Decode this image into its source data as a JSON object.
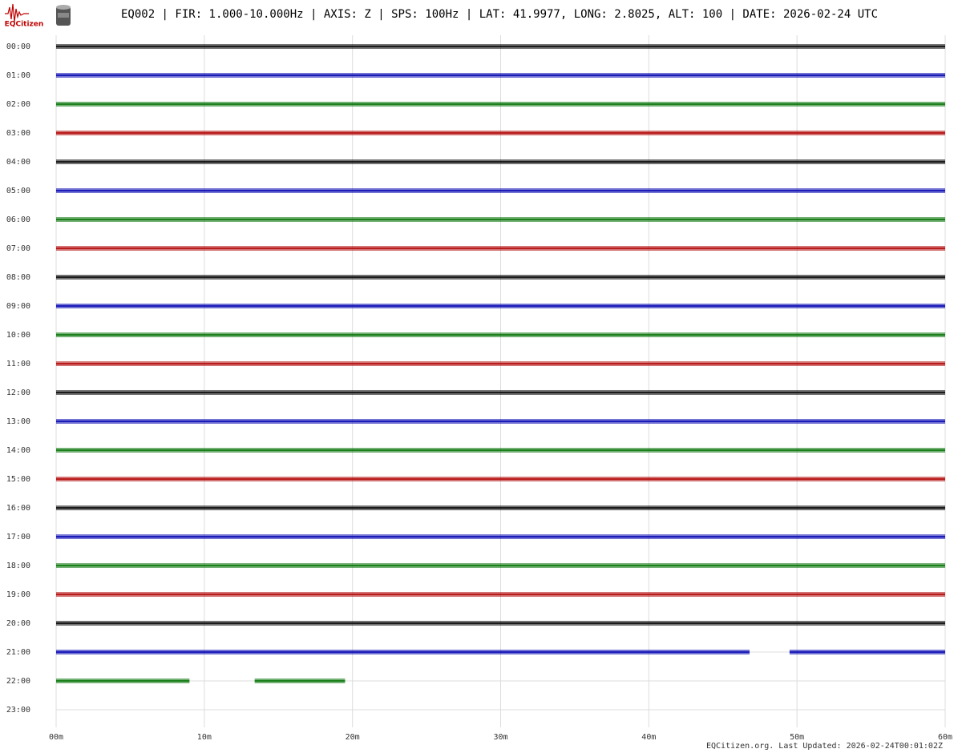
{
  "logo": {
    "text": "EQCitizen"
  },
  "chart_data": {
    "type": "helicorder",
    "title": "EQ002 | FIR: 1.000-10.000Hz | AXIS: Z | SPS: 100Hz | LAT: 41.9977, LONG: 2.8025, ALT: 100 | DATE: 2026-02-24 UTC",
    "footer": "EQCitizen.org. Last Updated: 2026-02-24T00:01:02Z",
    "categories": [
      "00:00",
      "01:00",
      "02:00",
      "03:00",
      "04:00",
      "05:00",
      "06:00",
      "07:00",
      "08:00",
      "09:00",
      "10:00",
      "11:00",
      "12:00",
      "13:00",
      "14:00",
      "15:00",
      "16:00",
      "17:00",
      "18:00",
      "19:00",
      "20:00",
      "21:00",
      "22:00",
      "23:00"
    ],
    "rows": [
      {
        "color": "#000000",
        "segments": [
          [
            0,
            60
          ]
        ]
      },
      {
        "color": "#0000b0",
        "segments": [
          [
            0,
            60
          ]
        ]
      },
      {
        "color": "#007000",
        "segments": [
          [
            0,
            60
          ]
        ]
      },
      {
        "color": "#b00000",
        "segments": [
          [
            0,
            60
          ]
        ]
      },
      {
        "color": "#000000",
        "segments": [
          [
            0,
            60
          ]
        ]
      },
      {
        "color": "#0000b0",
        "segments": [
          [
            0,
            60
          ]
        ]
      },
      {
        "color": "#007000",
        "segments": [
          [
            0,
            60
          ]
        ]
      },
      {
        "color": "#b00000",
        "segments": [
          [
            0,
            60
          ]
        ]
      },
      {
        "color": "#000000",
        "segments": [
          [
            0,
            60
          ]
        ]
      },
      {
        "color": "#0000b0",
        "segments": [
          [
            0,
            60
          ]
        ]
      },
      {
        "color": "#007000",
        "segments": [
          [
            0,
            60
          ]
        ]
      },
      {
        "color": "#b00000",
        "segments": [
          [
            0,
            60
          ]
        ]
      },
      {
        "color": "#000000",
        "segments": [
          [
            0,
            60
          ]
        ]
      },
      {
        "color": "#0000b0",
        "segments": [
          [
            0,
            60
          ]
        ]
      },
      {
        "color": "#007000",
        "segments": [
          [
            0,
            60
          ]
        ]
      },
      {
        "color": "#b00000",
        "segments": [
          [
            0,
            60
          ]
        ]
      },
      {
        "color": "#000000",
        "segments": [
          [
            0,
            60
          ]
        ]
      },
      {
        "color": "#0000b0",
        "segments": [
          [
            0,
            60
          ]
        ]
      },
      {
        "color": "#007000",
        "segments": [
          [
            0,
            60
          ]
        ]
      },
      {
        "color": "#b00000",
        "segments": [
          [
            0,
            60
          ]
        ]
      },
      {
        "color": "#000000",
        "segments": [
          [
            0,
            60
          ]
        ]
      },
      {
        "color": "#0000b0",
        "segments": [
          [
            0,
            46.8
          ],
          [
            49.5,
            60
          ]
        ]
      },
      {
        "color": "#007000",
        "segments": [
          [
            0,
            9
          ],
          [
            13.4,
            19.5
          ]
        ]
      },
      {
        "color": "#b00000",
        "segments": []
      }
    ],
    "xlim": [
      0,
      60
    ],
    "xticks": [
      {
        "value": 0,
        "label": "00m"
      },
      {
        "value": 10,
        "label": "10m"
      },
      {
        "value": 20,
        "label": "20m"
      },
      {
        "value": 30,
        "label": "30m"
      },
      {
        "value": 40,
        "label": "40m"
      },
      {
        "value": 50,
        "label": "50m"
      },
      {
        "value": 60,
        "label": "60m"
      }
    ],
    "grid": true
  }
}
